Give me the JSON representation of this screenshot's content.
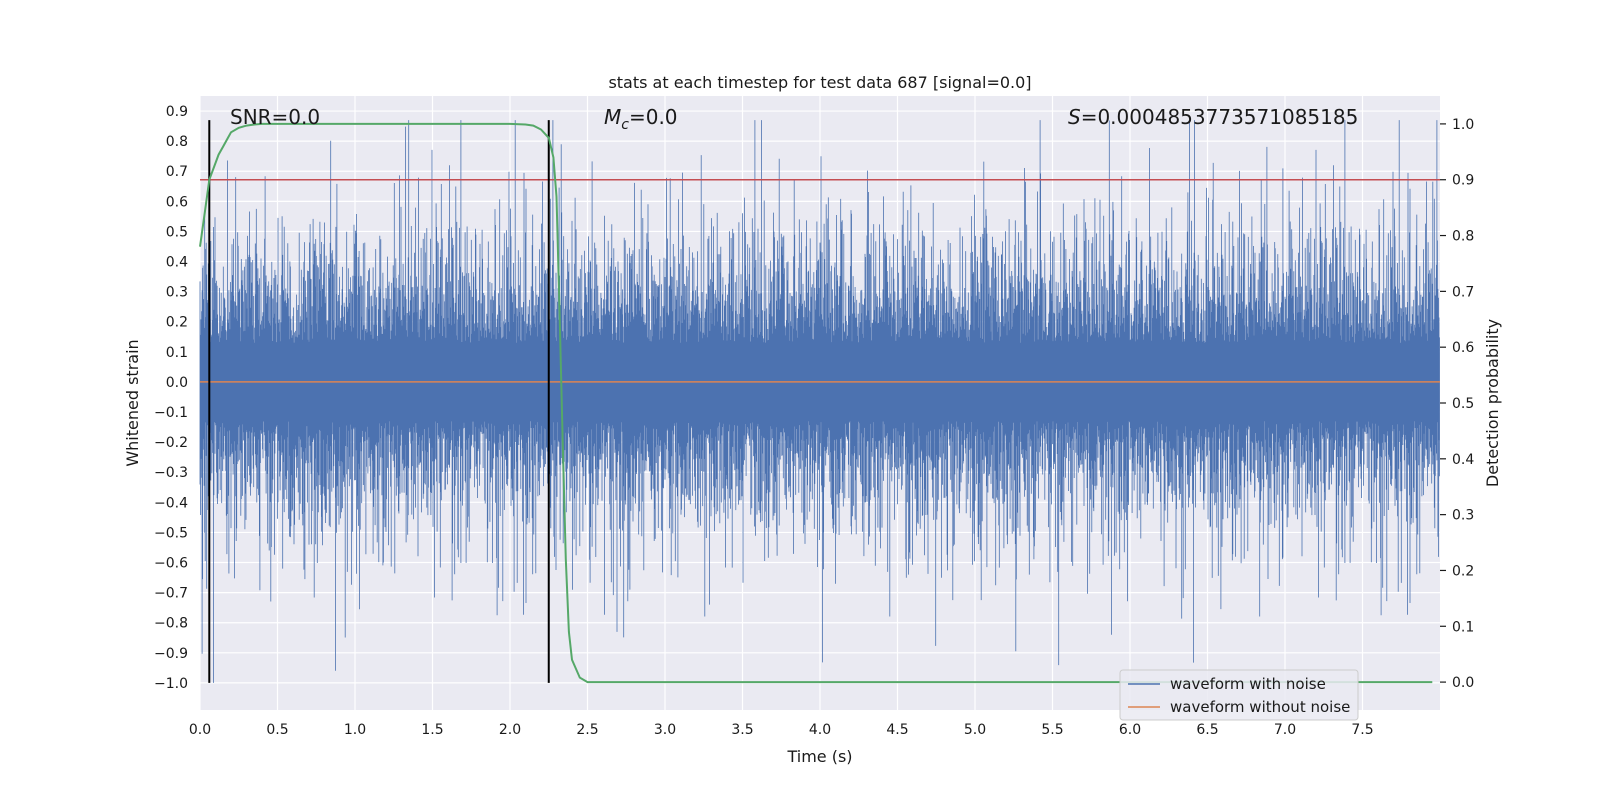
{
  "chart_data": {
    "type": "line",
    "title": "stats at each timestep for test data 687 [signal=0.0]",
    "xlabel": "Time (s)",
    "ylabel": "Whitened strain",
    "y2label": "Detection probability",
    "xlim": [
      0.0,
      8.0
    ],
    "ylim": [
      -1.09,
      0.95
    ],
    "y2lim": [
      -0.05,
      1.05
    ],
    "xticks": [
      0.0,
      0.5,
      1.0,
      1.5,
      2.0,
      2.5,
      3.0,
      3.5,
      4.0,
      4.5,
      5.0,
      5.5,
      6.0,
      6.5,
      7.0,
      7.5
    ],
    "xtick_labels": [
      "0.0",
      "0.5",
      "1.0",
      "1.5",
      "2.0",
      "2.5",
      "3.0",
      "3.5",
      "4.0",
      "4.5",
      "5.0",
      "5.5",
      "6.0",
      "6.5",
      "7.0",
      "7.5"
    ],
    "yticks": [
      0.9,
      0.8,
      0.7,
      0.6,
      0.5,
      0.4,
      0.3,
      0.2,
      0.1,
      0.0,
      -0.1,
      -0.2,
      -0.3,
      -0.4,
      -0.5,
      -0.6,
      -0.7,
      -0.8,
      -0.9,
      -1.0
    ],
    "ytick_labels": [
      "0.9",
      "0.8",
      "0.7",
      "0.6",
      "0.5",
      "0.4",
      "0.3",
      "0.2",
      "0.1",
      "0.0",
      "−0.1",
      "−0.2",
      "−0.3",
      "−0.4",
      "−0.5",
      "−0.6",
      "−0.7",
      "−0.8",
      "−0.9",
      "−1.0"
    ],
    "y2ticks": [
      1.0,
      0.9,
      0.8,
      0.7,
      0.6,
      0.5,
      0.4,
      0.3,
      0.2,
      0.1,
      0.0
    ],
    "y2tick_labels": [
      "1.0",
      "0.9",
      "0.8",
      "0.7",
      "0.6",
      "0.5",
      "0.4",
      "0.3",
      "0.2",
      "0.1",
      "0.0"
    ],
    "grid": true,
    "legend_position": "lower-right",
    "annotations": {
      "snr": "SNR=0.0",
      "mc_symbol": "M",
      "mc_subscript": "c",
      "mc_value": "=0.0",
      "s_symbol": "S",
      "s_value": "=0.0004853773571085185"
    },
    "colors": {
      "plot_bg": "#eaeaf2",
      "grid": "#ffffff",
      "noisy": "#4c72b0",
      "clean": "#dd8452",
      "probability": "#55a868",
      "threshold": "#c44e52",
      "markers": "#000000"
    },
    "series": [
      {
        "name": "waveform with noise",
        "kind": "noise",
        "typical_amplitude": 0.27,
        "max_positive": 0.87,
        "max_negative": -1.0
      },
      {
        "name": "waveform without noise",
        "kind": "constant",
        "value": 0.0
      },
      {
        "axis": "y2",
        "kind": "line",
        "x": [
          0.0,
          0.03,
          0.06,
          0.1,
          0.12,
          0.15,
          0.18,
          0.2,
          0.25,
          0.3,
          0.35,
          0.4,
          0.5,
          1.0,
          1.5,
          2.0,
          2.1,
          2.15,
          2.2,
          2.25,
          2.28,
          2.3,
          2.32,
          2.34,
          2.36,
          2.38,
          2.4,
          2.45,
          2.5,
          3.0,
          4.0,
          5.0,
          6.0,
          7.0,
          7.95
        ],
        "values": [
          0.78,
          0.84,
          0.9,
          0.93,
          0.945,
          0.96,
          0.975,
          0.985,
          0.993,
          0.997,
          0.999,
          1.0,
          1.0,
          1.0,
          1.0,
          1.0,
          0.999,
          0.997,
          0.99,
          0.975,
          0.94,
          0.87,
          0.66,
          0.43,
          0.22,
          0.09,
          0.04,
          0.008,
          0.0,
          0.0,
          0.0,
          0.0,
          0.0,
          0.0,
          0.0
        ]
      },
      {
        "axis": "y2",
        "kind": "hline",
        "value": 0.9
      },
      {
        "kind": "vlines",
        "x": [
          0.06,
          2.25
        ],
        "y_range": [
          -1.0,
          0.87
        ]
      }
    ]
  }
}
